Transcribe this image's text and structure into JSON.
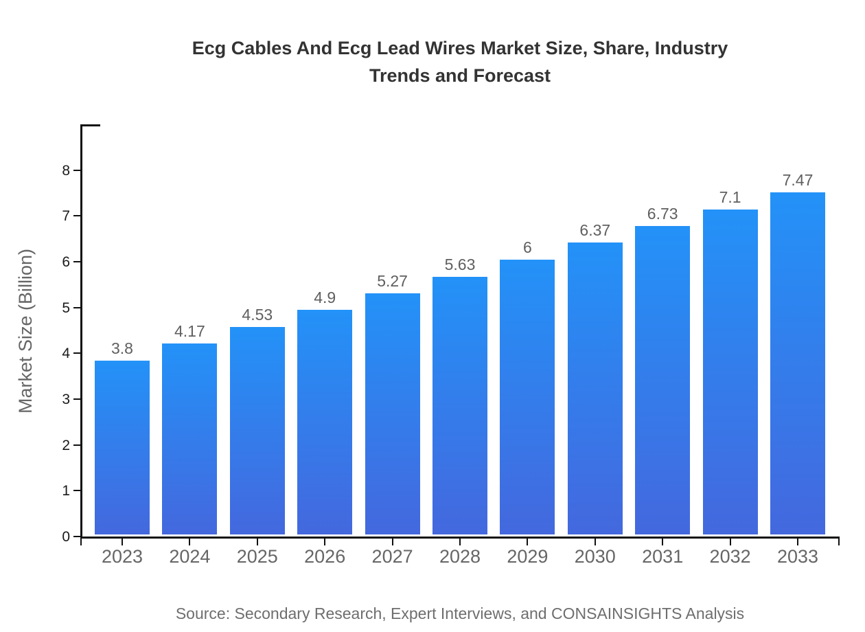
{
  "title": "Ecg Cables And Ecg Lead Wires Market Size, Share, Industry Trends and Forecast",
  "source_note": "Source: Secondary Research, Expert Interviews, and CONSAINSIGHTS Analysis",
  "colors": {
    "bar_gradient_top": "#2392f8",
    "bar_gradient_bottom": "#4468de",
    "title_text": "#333333",
    "axis": "#111111",
    "y_tick_label": "#1a1a1a",
    "muted_text": "#666666",
    "value_label": "#5f5f5f",
    "background": "#ffffff"
  },
  "chart_data": {
    "type": "bar",
    "title": "Ecg Cables And Ecg Lead Wires Market Size, Share, Industry Trends and Forecast",
    "xlabel": "",
    "ylabel": "Market Size (Billion)",
    "categories": [
      "2023",
      "2024",
      "2025",
      "2026",
      "2027",
      "2028",
      "2029",
      "2030",
      "2031",
      "2032",
      "2033"
    ],
    "values": [
      3.8,
      4.17,
      4.53,
      4.9,
      5.27,
      5.63,
      6,
      6.37,
      6.73,
      7.1,
      7.47
    ],
    "value_labels": [
      "3.8",
      "4.17",
      "4.53",
      "4.9",
      "5.27",
      "5.63",
      "6",
      "6.37",
      "6.73",
      "7.1",
      "7.47"
    ],
    "yticks": [
      0,
      1,
      2,
      3,
      4,
      5,
      6,
      7,
      8
    ],
    "ylim": [
      0,
      9
    ],
    "grid": false,
    "legend_position": "none",
    "data_labels_shown": true
  }
}
